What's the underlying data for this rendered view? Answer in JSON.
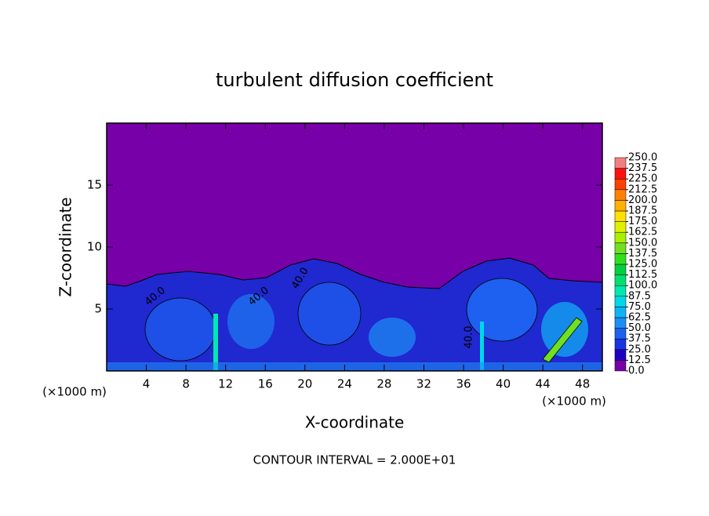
{
  "chart_data": {
    "type": "contour",
    "title": "turbulent diffusion coefficient",
    "xlabel": "X-coordinate",
    "ylabel": "Z-coordinate",
    "x_unit": "(×1000 m)",
    "footer": "CONTOUR INTERVAL = 2.000E+01",
    "xlim": [
      0,
      50
    ],
    "ylim": [
      0,
      20
    ],
    "xticks": [
      4,
      8,
      12,
      16,
      20,
      24,
      28,
      32,
      36,
      40,
      44,
      48
    ],
    "yticks": [
      5,
      10,
      15
    ],
    "contour_labels": [
      {
        "value": 40,
        "label": "40.0"
      },
      {
        "value": 40,
        "label": "40.0"
      },
      {
        "value": 40,
        "label": "40.0"
      },
      {
        "value": 40,
        "label": "40.0"
      }
    ],
    "colorbar": {
      "levels": [
        {
          "value": 0,
          "label": "0.0"
        },
        12.5,
        {
          "value": 25,
          "label": "25.0"
        },
        37.5,
        {
          "value": 50,
          "label": "50.0"
        },
        62.5,
        {
          "value": 75,
          "label": "75.0"
        },
        87.5,
        {
          "value": 100,
          "label": "100.0"
        },
        112.5,
        {
          "value": 125,
          "label": "125.0"
        },
        137.5,
        {
          "value": 150,
          "label": "150.0"
        },
        162.5,
        {
          "value": 175,
          "label": "175.0"
        },
        187.5,
        {
          "value": 200,
          "label": "200.0"
        },
        212.5,
        {
          "value": 225,
          "label": "225.0"
        },
        237.5,
        {
          "value": 250,
          "label": "250.0"
        }
      ],
      "colors": [
        "#7800a8",
        "#2000c0",
        "#1a34e0",
        "#1e60f0",
        "#1e8ef5",
        "#10b4f5",
        "#00d8e8",
        "#00e8b0",
        "#00e070",
        "#00d040",
        "#30e020",
        "#70e020",
        "#a8f000",
        "#e0f000",
        "#ffe000",
        "#ffb000",
        "#ff8000",
        "#ff4000",
        "#ff1010",
        "#f08080"
      ]
    }
  }
}
